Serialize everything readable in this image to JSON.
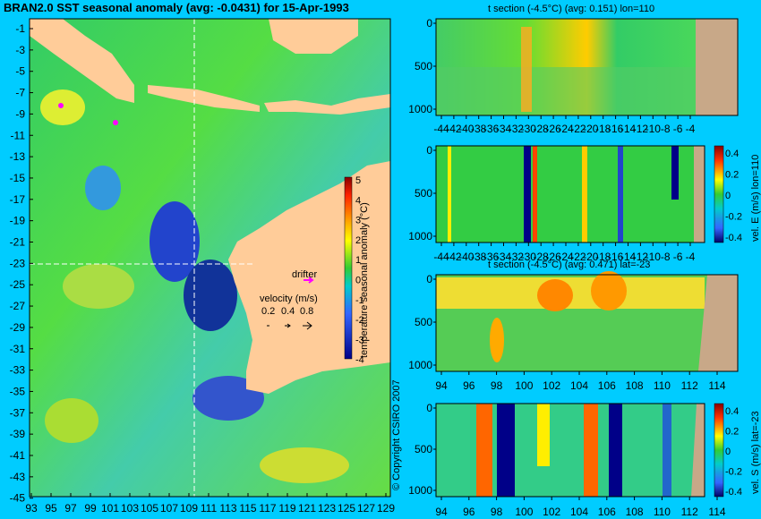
{
  "chart_data": [
    {
      "type": "heatmap",
      "title": "BRAN2.0 SST seasonal anomaly (avg: -0.0431) for 15-Apr-1993",
      "x_ticks": [
        "93",
        "95",
        "97",
        "99",
        "101",
        "103",
        "105",
        "107",
        "109",
        "111",
        "113",
        "115",
        "117",
        "119",
        "121",
        "123",
        "125",
        "127",
        "129"
      ],
      "y_ticks": [
        "-1",
        "-3",
        "-5",
        "-7",
        "-9",
        "-11",
        "-13",
        "-15",
        "-17",
        "-19",
        "-21",
        "-23",
        "-25",
        "-27",
        "-29",
        "-31",
        "-33",
        "-35",
        "-37",
        "-39",
        "-41",
        "-43",
        "-45"
      ],
      "colorbar": {
        "label": "temperature seasonal anomaly (°C)",
        "ticks": [
          "5",
          "4",
          "3",
          "2",
          "1",
          "0",
          "-1",
          "-2",
          "-3",
          "-4"
        ],
        "range": [
          -4,
          5
        ]
      },
      "legend": {
        "drifter": "drifter",
        "velocity_title": "velocity (m/s)",
        "velocity_values": [
          "0.2",
          "0.4",
          "0.8"
        ]
      },
      "section_lines": {
        "lon": 110,
        "lat": -23
      },
      "copyright": "© Copyright CSIRO 2007"
    },
    {
      "type": "heatmap",
      "title": "t section (-4.5°C) (avg: 0.151) lon=110",
      "x_ticks": [
        "-44",
        "-42",
        "-40",
        "-38",
        "-36",
        "-34",
        "-32",
        "-30",
        "-28",
        "-26",
        "-24",
        "-22",
        "-20",
        "-18",
        "-16",
        "-14",
        "-12",
        "-10",
        "-8",
        "-6",
        "-4"
      ],
      "y_ticks": [
        "0",
        "500",
        "1000"
      ]
    },
    {
      "type": "heatmap",
      "title": "",
      "x_ticks": [
        "-44",
        "-42",
        "-40",
        "-38",
        "-36",
        "-34",
        "-32",
        "-30",
        "-28",
        "-26",
        "-24",
        "-22",
        "-20",
        "-18",
        "-16",
        "-14",
        "-12",
        "-10",
        "-8",
        "-6",
        "-4"
      ],
      "y_ticks": [
        "0",
        "500",
        "1000"
      ],
      "colorbar": {
        "label": "vel. E (m/s) lon=110",
        "ticks": [
          "0.4",
          "0.2",
          "0",
          "-0.2",
          "-0.4"
        ],
        "range": [
          -0.4,
          0.4
        ]
      }
    },
    {
      "type": "heatmap",
      "title": "t section (-4.5°C) (avg: 0.471) lat=-23",
      "x_ticks": [
        "94",
        "96",
        "98",
        "100",
        "102",
        "104",
        "106",
        "108",
        "110",
        "112",
        "114"
      ],
      "y_ticks": [
        "0",
        "500",
        "1000"
      ]
    },
    {
      "type": "heatmap",
      "title": "",
      "x_ticks": [
        "94",
        "96",
        "98",
        "100",
        "102",
        "104",
        "106",
        "108",
        "110",
        "112",
        "114"
      ],
      "y_ticks": [
        "0",
        "500",
        "1000"
      ],
      "colorbar": {
        "label": "vel. S (m/s) lat=-23",
        "ticks": [
          "0.4",
          "0.2",
          "0",
          "-0.2",
          "-0.4"
        ],
        "range": [
          -0.4,
          0.4
        ]
      }
    }
  ]
}
